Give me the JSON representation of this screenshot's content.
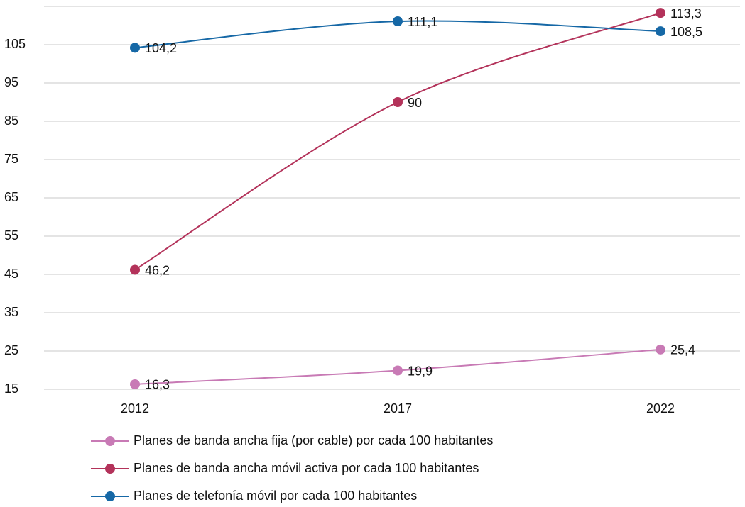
{
  "chart_data": {
    "type": "line",
    "categories": [
      "2012",
      "2017",
      "2022"
    ],
    "series": [
      {
        "name": "Planes de banda ancha fija (por cable) por cada 100 habitantes",
        "color": "#c87ab5",
        "values": [
          16.3,
          19.9,
          25.4
        ],
        "value_labels": [
          "16,3",
          "19,9",
          "25,4"
        ]
      },
      {
        "name": "Planes de banda ancha móvil activa por cada 100 habitantes",
        "color": "#b3325a",
        "values": [
          46.2,
          90,
          113.3
        ],
        "value_labels": [
          "46,2",
          "90",
          "113,3"
        ]
      },
      {
        "name": "Planes de telefonía móvil por cada 100 habitantes",
        "color": "#1668a6",
        "values": [
          104.2,
          111.1,
          108.5
        ],
        "value_labels": [
          "104,2",
          "111,1",
          "108,5"
        ]
      }
    ],
    "ylim": [
      15,
      115
    ],
    "yticks": [
      15,
      25,
      35,
      45,
      55,
      65,
      75,
      85,
      95,
      105
    ],
    "grid": true
  }
}
